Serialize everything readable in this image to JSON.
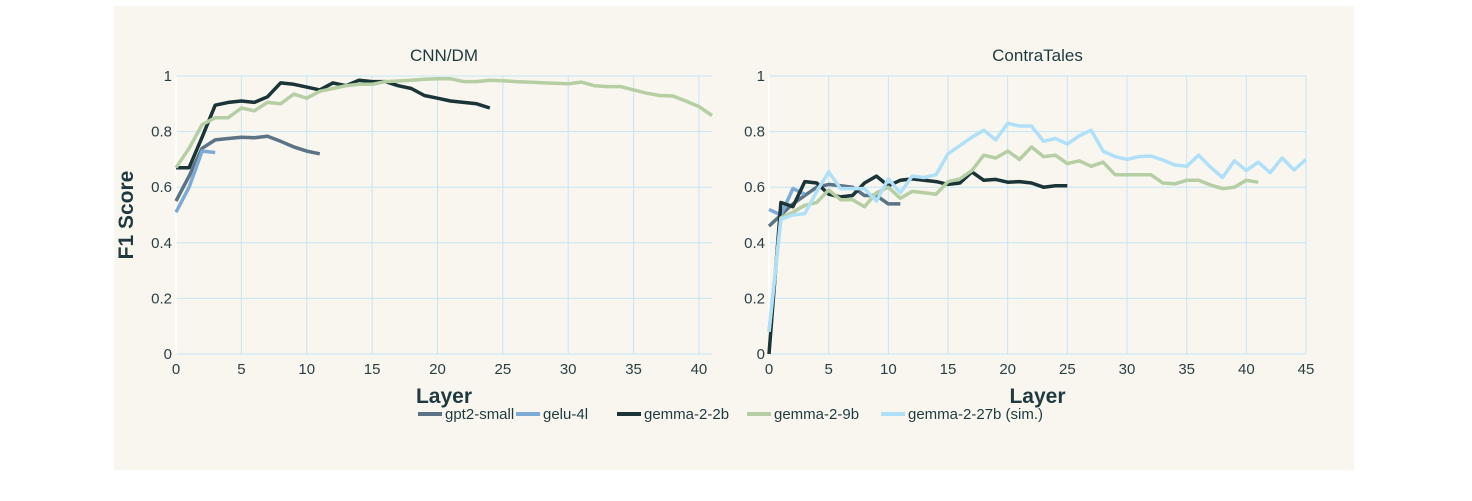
{
  "chart_data": [
    {
      "type": "line",
      "title": "CNN/DM",
      "xlabel": "Layer",
      "ylabel": "F1 Score",
      "xlim": [
        0,
        41
      ],
      "ylim": [
        0,
        1
      ],
      "xticks": [
        0,
        5,
        10,
        15,
        20,
        25,
        30,
        35,
        40
      ],
      "yticks": [
        0,
        0.2,
        0.4,
        0.6,
        0.8,
        1
      ],
      "ytick_labels": [
        "0",
        "0.2",
        "0.4",
        "0.6",
        "0.8",
        "1"
      ],
      "grid": true,
      "series": [
        {
          "name": "gpt2-small",
          "values": [
            0.55,
            0.64,
            0.74,
            0.77,
            0.775,
            0.78,
            0.778,
            0.783,
            0.765,
            0.745,
            0.73,
            0.72
          ]
        },
        {
          "name": "gelu-4l",
          "values": [
            0.51,
            0.6,
            0.73,
            0.725
          ]
        },
        {
          "name": "gemma-2-2b",
          "values": [
            0.67,
            0.67,
            0.78,
            0.895,
            0.905,
            0.91,
            0.905,
            0.925,
            0.975,
            0.97,
            0.96,
            0.95,
            0.975,
            0.965,
            0.985,
            0.98,
            0.98,
            0.965,
            0.955,
            0.93,
            0.92,
            0.91,
            0.905,
            0.9,
            0.885
          ]
        },
        {
          "name": "gemma-2-9b",
          "values": [
            0.67,
            0.74,
            0.825,
            0.85,
            0.85,
            0.885,
            0.875,
            0.905,
            0.9,
            0.935,
            0.92,
            0.945,
            0.955,
            0.965,
            0.97,
            0.97,
            0.98,
            0.982,
            0.985,
            0.988,
            0.99,
            0.99,
            0.98,
            0.98,
            0.985,
            0.983,
            0.98,
            0.978,
            0.976,
            0.974,
            0.972,
            0.978,
            0.965,
            0.962,
            0.962,
            0.95,
            0.938,
            0.93,
            0.928,
            0.91,
            0.89,
            0.858
          ]
        }
      ]
    },
    {
      "type": "line",
      "title": "ContraTales",
      "xlabel": "Layer",
      "xlim": [
        0,
        45
      ],
      "ylim": [
        0,
        1
      ],
      "xticks": [
        0,
        5,
        10,
        15,
        20,
        25,
        30,
        35,
        40,
        45
      ],
      "yticks": [
        0,
        0.2,
        0.4,
        0.6,
        0.8,
        1
      ],
      "ytick_labels": [
        "0",
        "0.2",
        "0.4",
        "0.6",
        "0.8",
        "1"
      ],
      "grid": true,
      "series": [
        {
          "name": "gpt2-small",
          "values": [
            0.46,
            0.5,
            0.54,
            0.57,
            0.6,
            0.61,
            0.605,
            0.6,
            0.57,
            0.57,
            0.54,
            0.54
          ]
        },
        {
          "name": "gelu-4l",
          "values": [
            0.52,
            0.5,
            0.595,
            0.575
          ]
        },
        {
          "name": "gemma-2-2b",
          "values": [
            0.0,
            0.545,
            0.53,
            0.62,
            0.615,
            0.575,
            0.565,
            0.57,
            0.615,
            0.64,
            0.605,
            0.625,
            0.63,
            0.625,
            0.62,
            0.61,
            0.615,
            0.655,
            0.625,
            0.628,
            0.618,
            0.62,
            0.615,
            0.6,
            0.605,
            0.605
          ]
        },
        {
          "name": "gemma-2-9b",
          "values": [
            0.08,
            0.49,
            0.51,
            0.535,
            0.545,
            0.59,
            0.555,
            0.555,
            0.53,
            0.58,
            0.6,
            0.56,
            0.585,
            0.58,
            0.575,
            0.62,
            0.63,
            0.66,
            0.715,
            0.705,
            0.73,
            0.7,
            0.745,
            0.71,
            0.715,
            0.685,
            0.695,
            0.675,
            0.69,
            0.645,
            0.645,
            0.645,
            0.645,
            0.615,
            0.612,
            0.625,
            0.625,
            0.608,
            0.595,
            0.6,
            0.625,
            0.618
          ]
        },
        {
          "name": "gemma-2-27b (sim.)",
          "values": [
            0.08,
            0.485,
            0.5,
            0.505,
            0.585,
            0.655,
            0.595,
            0.595,
            0.595,
            0.55,
            0.63,
            0.58,
            0.64,
            0.635,
            0.645,
            0.72,
            0.75,
            0.78,
            0.805,
            0.77,
            0.83,
            0.82,
            0.82,
            0.765,
            0.775,
            0.755,
            0.785,
            0.805,
            0.73,
            0.71,
            0.7,
            0.71,
            0.712,
            0.698,
            0.68,
            0.675,
            0.715,
            0.672,
            0.635,
            0.695,
            0.66,
            0.69,
            0.652,
            0.705,
            0.662,
            0.7
          ]
        }
      ]
    }
  ],
  "legend": {
    "placement": "bottom-center",
    "items": [
      {
        "name": "gpt2-small",
        "color": "#5b7384"
      },
      {
        "name": "gelu-4l",
        "color": "#7eaad6"
      },
      {
        "name": "gemma-2-2b",
        "color": "#1a3437"
      },
      {
        "name": "gemma-2-9b",
        "color": "#b6cea4"
      },
      {
        "name": "gemma-2-27b (sim.)",
        "color": "#b0e0f8"
      }
    ]
  },
  "colors": {
    "grid": "#c6e6f5",
    "text": "#1f3a3f",
    "background": "#f8f6ef"
  }
}
